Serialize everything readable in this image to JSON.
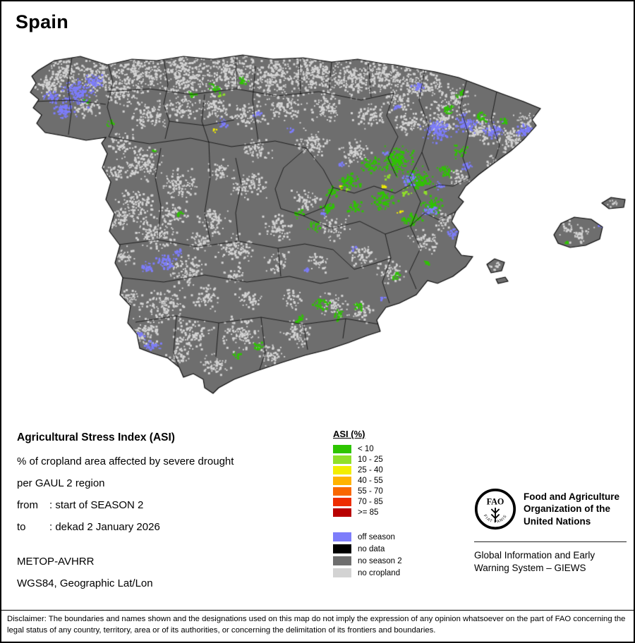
{
  "title": "Spain",
  "info": {
    "heading": "Agricultural Stress Index (ASI)",
    "line1": "% of cropland area affected by severe drought",
    "line2": "per GAUL 2 region",
    "from_label": "from",
    "from_value": ": start of SEASON 2",
    "to_label": "to",
    "to_value": ": dekad 2 January 2026",
    "sensor": "METOP-AVHRR",
    "projection": "WGS84, Geographic Lat/Lon"
  },
  "legend": {
    "title": "ASI (%)",
    "classes": [
      {
        "label": "< 10",
        "color": "#2ec500"
      },
      {
        "label": "10 - 25",
        "color": "#90e02a"
      },
      {
        "label": "25 - 40",
        "color": "#f2ee00"
      },
      {
        "label": "40 - 55",
        "color": "#ffb300"
      },
      {
        "label": "55 - 70",
        "color": "#f96700"
      },
      {
        "label": "70 - 85",
        "color": "#ee2d00"
      },
      {
        "label": ">= 85",
        "color": "#b80000"
      }
    ],
    "extras": [
      {
        "label": "off season",
        "color": "#7d7dfb"
      },
      {
        "label": "no data",
        "color": "#000000"
      },
      {
        "label": "no season 2",
        "color": "#6e6e6e"
      },
      {
        "label": "no cropland",
        "color": "#d3d3d3"
      }
    ]
  },
  "org": {
    "logo_letters": "FAO",
    "logo_motto": "FIAT PANIS",
    "fao_name": "Food and Agriculture Organization of the United Nations",
    "giews": "Global Information and Early Warning System – GIEWS"
  },
  "disclaimer": "Disclaimer: The boundaries and names shown and the designations used on this map do not imply the expression of any opinion whatsoever on the part of FAO concerning the legal status of any country, territory, area or of its authorities, or concerning the delimitation of its frontiers and boundaries."
}
